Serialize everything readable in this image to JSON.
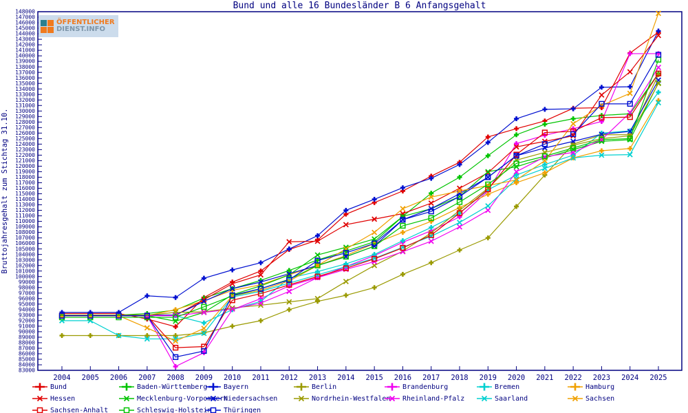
{
  "title": "Bund und alle 16 Bundesländer B 6 Anfangsgehalt",
  "logo": {
    "line1": "ÖFFENTLICHER",
    "line2": "DIENST.INFO"
  },
  "axis": {
    "ylabel": "Bruttojahresgehalt zum Stichtag 31.10.",
    "xlabel": "",
    "ylim": [
      83000,
      148000
    ],
    "y_tick_step": 1000,
    "grid": false,
    "frame_color": "#000080",
    "text_color": "#000080"
  },
  "chart_data": {
    "type": "line",
    "title": "Bund und alle 16 Bundesländer B 6 Anfangsgehalt",
    "xlabel": "",
    "ylabel": "Bruttojahresgehalt zum Stichtag 31.10.",
    "ylim": [
      83000,
      148000
    ],
    "legend_position": "bottom",
    "x": [
      2004,
      2005,
      2006,
      2007,
      2008,
      2009,
      2010,
      2011,
      2012,
      2013,
      2014,
      2015,
      2016,
      2017,
      2018,
      2019,
      2020,
      2021,
      2022,
      2023,
      2024,
      2025
    ],
    "series": [
      {
        "name": "Bund",
        "color": "#e00000",
        "marker": "plus",
        "values": [
          93300,
          93300,
          93300,
          92300,
          90900,
          96200,
          99000,
          101000,
          104900,
          106600,
          111300,
          113400,
          115500,
          118200,
          120700,
          125300,
          126800,
          128200,
          130500,
          130600,
          140500,
          144300
        ]
      },
      {
        "name": "Baden-Württemberg",
        "color": "#00c400",
        "marker": "plus",
        "values": [
          93000,
          93000,
          93000,
          93300,
          93900,
          96100,
          97800,
          99300,
          101100,
          103000,
          104600,
          106300,
          110900,
          115100,
          118000,
          121900,
          125700,
          127600,
          128600,
          129200,
          129500,
          136800
        ]
      },
      {
        "name": "Bayern",
        "color": "#0010d0",
        "marker": "plus",
        "values": [
          93500,
          93500,
          93500,
          96500,
          96200,
          99700,
          101200,
          102500,
          105000,
          107400,
          112000,
          114000,
          116100,
          117800,
          120300,
          124300,
          128600,
          130300,
          130400,
          134300,
          134400,
          144500
        ]
      },
      {
        "name": "Berlin",
        "color": "#9a9a00",
        "marker": "plus",
        "values": [
          89300,
          89300,
          89300,
          89300,
          89300,
          89800,
          91000,
          92000,
          94000,
          95500,
          96600,
          98000,
          100400,
          102500,
          104800,
          107000,
          112700,
          118400,
          124000,
          125700,
          125700,
          136600
        ]
      },
      {
        "name": "Brandenburg",
        "color": "#f000f0",
        "marker": "plus",
        "values": [
          92900,
          92900,
          92900,
          92900,
          83700,
          86200,
          94000,
          96000,
          98300,
          99800,
          101800,
          103800,
          106200,
          108300,
          110800,
          115500,
          124100,
          125600,
          126800,
          128100,
          140400,
          140400
        ]
      },
      {
        "name": "Bremen",
        "color": "#00d0d0",
        "marker": "plus",
        "values": [
          92900,
          92900,
          92900,
          92900,
          92900,
          91600,
          94000,
          95500,
          99700,
          100900,
          102300,
          104000,
          106500,
          108900,
          111500,
          115700,
          118400,
          120300,
          122000,
          126000,
          126400,
          133400
        ]
      },
      {
        "name": "Hamburg",
        "color": "#f0a000",
        "marker": "plus",
        "values": [
          92900,
          92900,
          92900,
          92900,
          94000,
          95600,
          97500,
          98500,
          100300,
          102000,
          103800,
          106000,
          108000,
          110000,
          112500,
          114900,
          117000,
          118800,
          121500,
          122800,
          123200,
          131900
        ]
      },
      {
        "name": "Hessen",
        "color": "#e00000",
        "marker": "x",
        "values": [
          93000,
          93000,
          93000,
          93000,
          93000,
          95800,
          98700,
          100300,
          106300,
          106400,
          109400,
          110400,
          111400,
          113300,
          116000,
          118800,
          123500,
          124500,
          125500,
          132900,
          137100,
          143700
        ]
      },
      {
        "name": "Mecklenburg-Vorpommern",
        "color": "#00c400",
        "marker": "x",
        "values": [
          92900,
          92900,
          92900,
          92900,
          91900,
          93500,
          96700,
          98300,
          100300,
          103900,
          105300,
          106800,
          110900,
          112300,
          114500,
          119000,
          119900,
          121500,
          123000,
          124500,
          124800,
          135100
        ]
      },
      {
        "name": "Niedersachsen",
        "color": "#0010d0",
        "marker": "x",
        "values": [
          93000,
          93000,
          93000,
          93000,
          93000,
          95500,
          97800,
          99000,
          100500,
          102000,
          103600,
          105500,
          110300,
          112300,
          115000,
          118000,
          121900,
          123300,
          124500,
          125800,
          126300,
          135600
        ]
      },
      {
        "name": "Nordrhein-Westfalen",
        "color": "#9a9a00",
        "marker": "x",
        "values": [
          93000,
          93000,
          93000,
          93000,
          93500,
          93600,
          94300,
          94800,
          95400,
          96000,
          99100,
          102000,
          104600,
          107900,
          112000,
          116000,
          121100,
          122500,
          123800,
          125000,
          125500,
          135000
        ]
      },
      {
        "name": "Rheinland-Pfalz",
        "color": "#f000f0",
        "marker": "x",
        "values": [
          92900,
          92900,
          92900,
          92900,
          92900,
          93500,
          94100,
          95200,
          97300,
          99800,
          101300,
          102700,
          104500,
          106400,
          109000,
          112000,
          119000,
          121700,
          122500,
          124800,
          129700,
          137900
        ]
      },
      {
        "name": "Saarland",
        "color": "#00d0d0",
        "marker": "x",
        "values": [
          92000,
          92000,
          89300,
          88700,
          88700,
          89700,
          96300,
          97300,
          98800,
          100300,
          101800,
          103300,
          105300,
          107300,
          109800,
          112800,
          117700,
          119600,
          121500,
          122000,
          122100,
          131500
        ]
      },
      {
        "name": "Sachsen",
        "color": "#f0a000",
        "marker": "x",
        "values": [
          92900,
          92900,
          92900,
          90700,
          88300,
          90600,
          96500,
          97500,
          99200,
          102000,
          105000,
          108000,
          112300,
          114400,
          115500,
          116500,
          117500,
          121000,
          127700,
          131000,
          133200,
          147700
        ]
      },
      {
        "name": "Sachsen-Anhalt",
        "color": "#e00000",
        "marker": "square",
        "values": [
          92900,
          92900,
          92900,
          92900,
          87100,
          87300,
          95700,
          96900,
          98500,
          100000,
          101500,
          103200,
          105200,
          107500,
          111500,
          115800,
          122100,
          126100,
          126300,
          128800,
          128900,
          136800
        ]
      },
      {
        "name": "Schleswig-Holstein",
        "color": "#00c400",
        "marker": "square",
        "values": [
          92600,
          92600,
          92600,
          92600,
          92600,
          94500,
          96500,
          97800,
          99500,
          102000,
          103600,
          105500,
          109200,
          110600,
          113500,
          116700,
          120500,
          121800,
          123300,
          124800,
          125000,
          139300
        ]
      },
      {
        "name": "Thüringen",
        "color": "#0010d0",
        "marker": "square",
        "values": [
          92900,
          92900,
          92900,
          92900,
          85400,
          86500,
          96600,
          97800,
          99400,
          102900,
          104300,
          106000,
          110300,
          111800,
          114500,
          118000,
          121900,
          124000,
          125800,
          131300,
          131300,
          140200
        ]
      }
    ],
    "legend_columns": 7
  }
}
